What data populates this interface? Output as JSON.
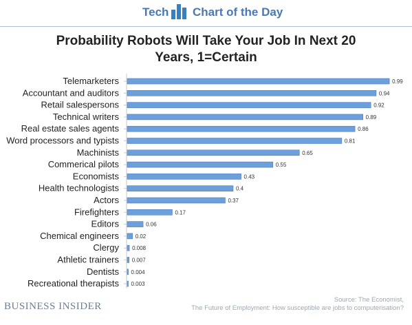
{
  "header": {
    "tech_label": "Tech",
    "chart_of_day_label": "Chart of the Day"
  },
  "footer": {
    "brand": "BUSINESS INSIDER",
    "source_line1": "Source: The Economist,",
    "source_line2": "The Future of Employment: How susceptible are jobs to computerisation?"
  },
  "colors": {
    "bar": "#6d9fda",
    "bar_edge": "#4b7fc0",
    "brand_accent": "#3a7fc0"
  },
  "chart_data": {
    "type": "bar",
    "orientation": "horizontal",
    "title_line1": "Probability Robots Will Take Your Job In Next 20",
    "title_line2": "Years, 1=Certain",
    "categories": [
      "Telemarketers",
      "Accountant and auditors",
      "Retail salespersons",
      "Technical writers",
      "Real estate sales agents",
      "Word processors and typists",
      "Machinists",
      "Commerical pilots",
      "Economists",
      "Health technologists",
      "Actors",
      "Firefighters",
      "Editors",
      "Chemical engineers",
      "Clergy",
      "Athletic trainers",
      "Dentists",
      "Recreational therapists"
    ],
    "values": [
      0.99,
      0.94,
      0.92,
      0.89,
      0.86,
      0.81,
      0.65,
      0.55,
      0.43,
      0.4,
      0.37,
      0.17,
      0.06,
      0.02,
      0.008,
      0.007,
      0.004,
      0.003
    ],
    "value_labels": [
      "0.99",
      "0.94",
      "0.92",
      "0.89",
      "0.86",
      "0.81",
      "0.65",
      "0.55",
      "0.43",
      "0.4",
      "0.37",
      "0.17",
      "0.06",
      "0.02",
      "0.008",
      "0.007",
      "0.004",
      "0.003"
    ],
    "xlim": [
      0,
      1
    ],
    "grid": false
  }
}
